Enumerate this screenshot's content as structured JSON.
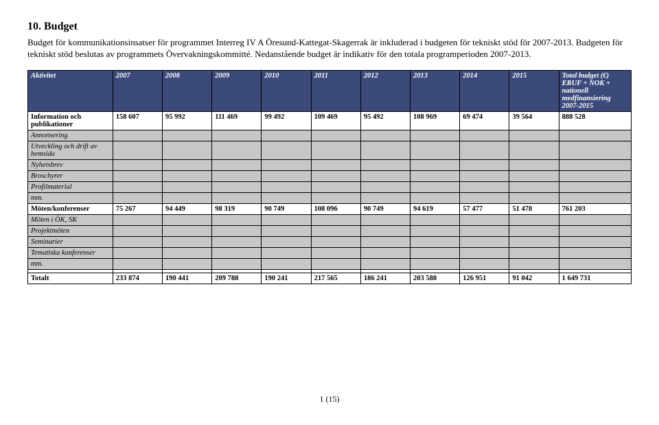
{
  "heading": "10. Budget",
  "intro": "Budget för kommunikationsinsatser för programmet Interreg IV A Öresund-Kattegat-Skagerrak är inkluderad i budgeten för tekniskt stöd för 2007-2013. Budgeten för tekniskt stöd beslutas av programmets Övervakningskommitté. Nedanstående budget är indikativ för den totala programperioden 2007-2013.",
  "table": {
    "header": [
      "Aktivitet",
      "2007",
      "2008",
      "2009",
      "2010",
      "2011",
      "2012",
      "2013",
      "2014",
      "2015",
      "Total budget (€) ERUF + NOK + nationell medfinansiering 2007-2015"
    ],
    "rows": [
      {
        "kind": "data",
        "cells": [
          "Information och publikationer",
          "158 607",
          "95 992",
          "111 469",
          "99 492",
          "109 469",
          "95 492",
          "108 969",
          "69 474",
          "39 564",
          "888 528"
        ]
      },
      {
        "kind": "shade",
        "cells": [
          "Annonsering",
          "",
          "",
          "",
          "",
          "",
          "",
          "",
          "",
          "",
          ""
        ]
      },
      {
        "kind": "shade",
        "cells": [
          "Utveckling och drift av hemsida",
          "",
          "",
          "",
          "",
          "",
          "",
          "",
          "",
          "",
          ""
        ]
      },
      {
        "kind": "shade",
        "cells": [
          "Nyhetsbrev",
          "",
          "",
          "",
          "",
          "",
          "",
          "",
          "",
          "",
          ""
        ]
      },
      {
        "kind": "shade",
        "cells": [
          "Broschyrer",
          "",
          "",
          "",
          "",
          "",
          "",
          "",
          "",
          "",
          ""
        ]
      },
      {
        "kind": "shade",
        "cells": [
          "Profilmaterial",
          "",
          "",
          "",
          "",
          "",
          "",
          "",
          "",
          "",
          ""
        ]
      },
      {
        "kind": "shade",
        "cells": [
          "mm.",
          "",
          "",
          "",
          "",
          "",
          "",
          "",
          "",
          "",
          ""
        ]
      },
      {
        "kind": "data",
        "cells": [
          "Möten/konferenser",
          "75 267",
          "94 449",
          "98 319",
          "90 749",
          "108 096",
          "90 749",
          "94 619",
          "57 477",
          "51 478",
          "761 203"
        ]
      },
      {
        "kind": "shade",
        "cells": [
          "Möten i ÖK, SK",
          "",
          "",
          "",
          "",
          "",
          "",
          "",
          "",
          "",
          ""
        ]
      },
      {
        "kind": "shade",
        "cells": [
          "Projektmöten",
          "",
          "",
          "",
          "",
          "",
          "",
          "",
          "",
          "",
          ""
        ]
      },
      {
        "kind": "shade",
        "cells": [
          "Seminarier",
          "",
          "",
          "",
          "",
          "",
          "",
          "",
          "",
          "",
          ""
        ]
      },
      {
        "kind": "shade",
        "cells": [
          "Tematiska konferenser",
          "",
          "",
          "",
          "",
          "",
          "",
          "",
          "",
          "",
          ""
        ]
      },
      {
        "kind": "shade",
        "cells": [
          "mm.",
          "",
          "",
          "",
          "",
          "",
          "",
          "",
          "",
          "",
          ""
        ]
      },
      {
        "kind": "spacer",
        "cells": [
          "",
          "",
          "",
          "",
          "",
          "",
          "",
          "",
          "",
          "",
          ""
        ]
      },
      {
        "kind": "data",
        "cells": [
          "Totalt",
          "233 874",
          "190 441",
          "209 788",
          "190 241",
          "217 565",
          "186 241",
          "203 588",
          "126 951",
          "91 042",
          "1 649 731"
        ]
      }
    ]
  },
  "footer": "1 (15)"
}
